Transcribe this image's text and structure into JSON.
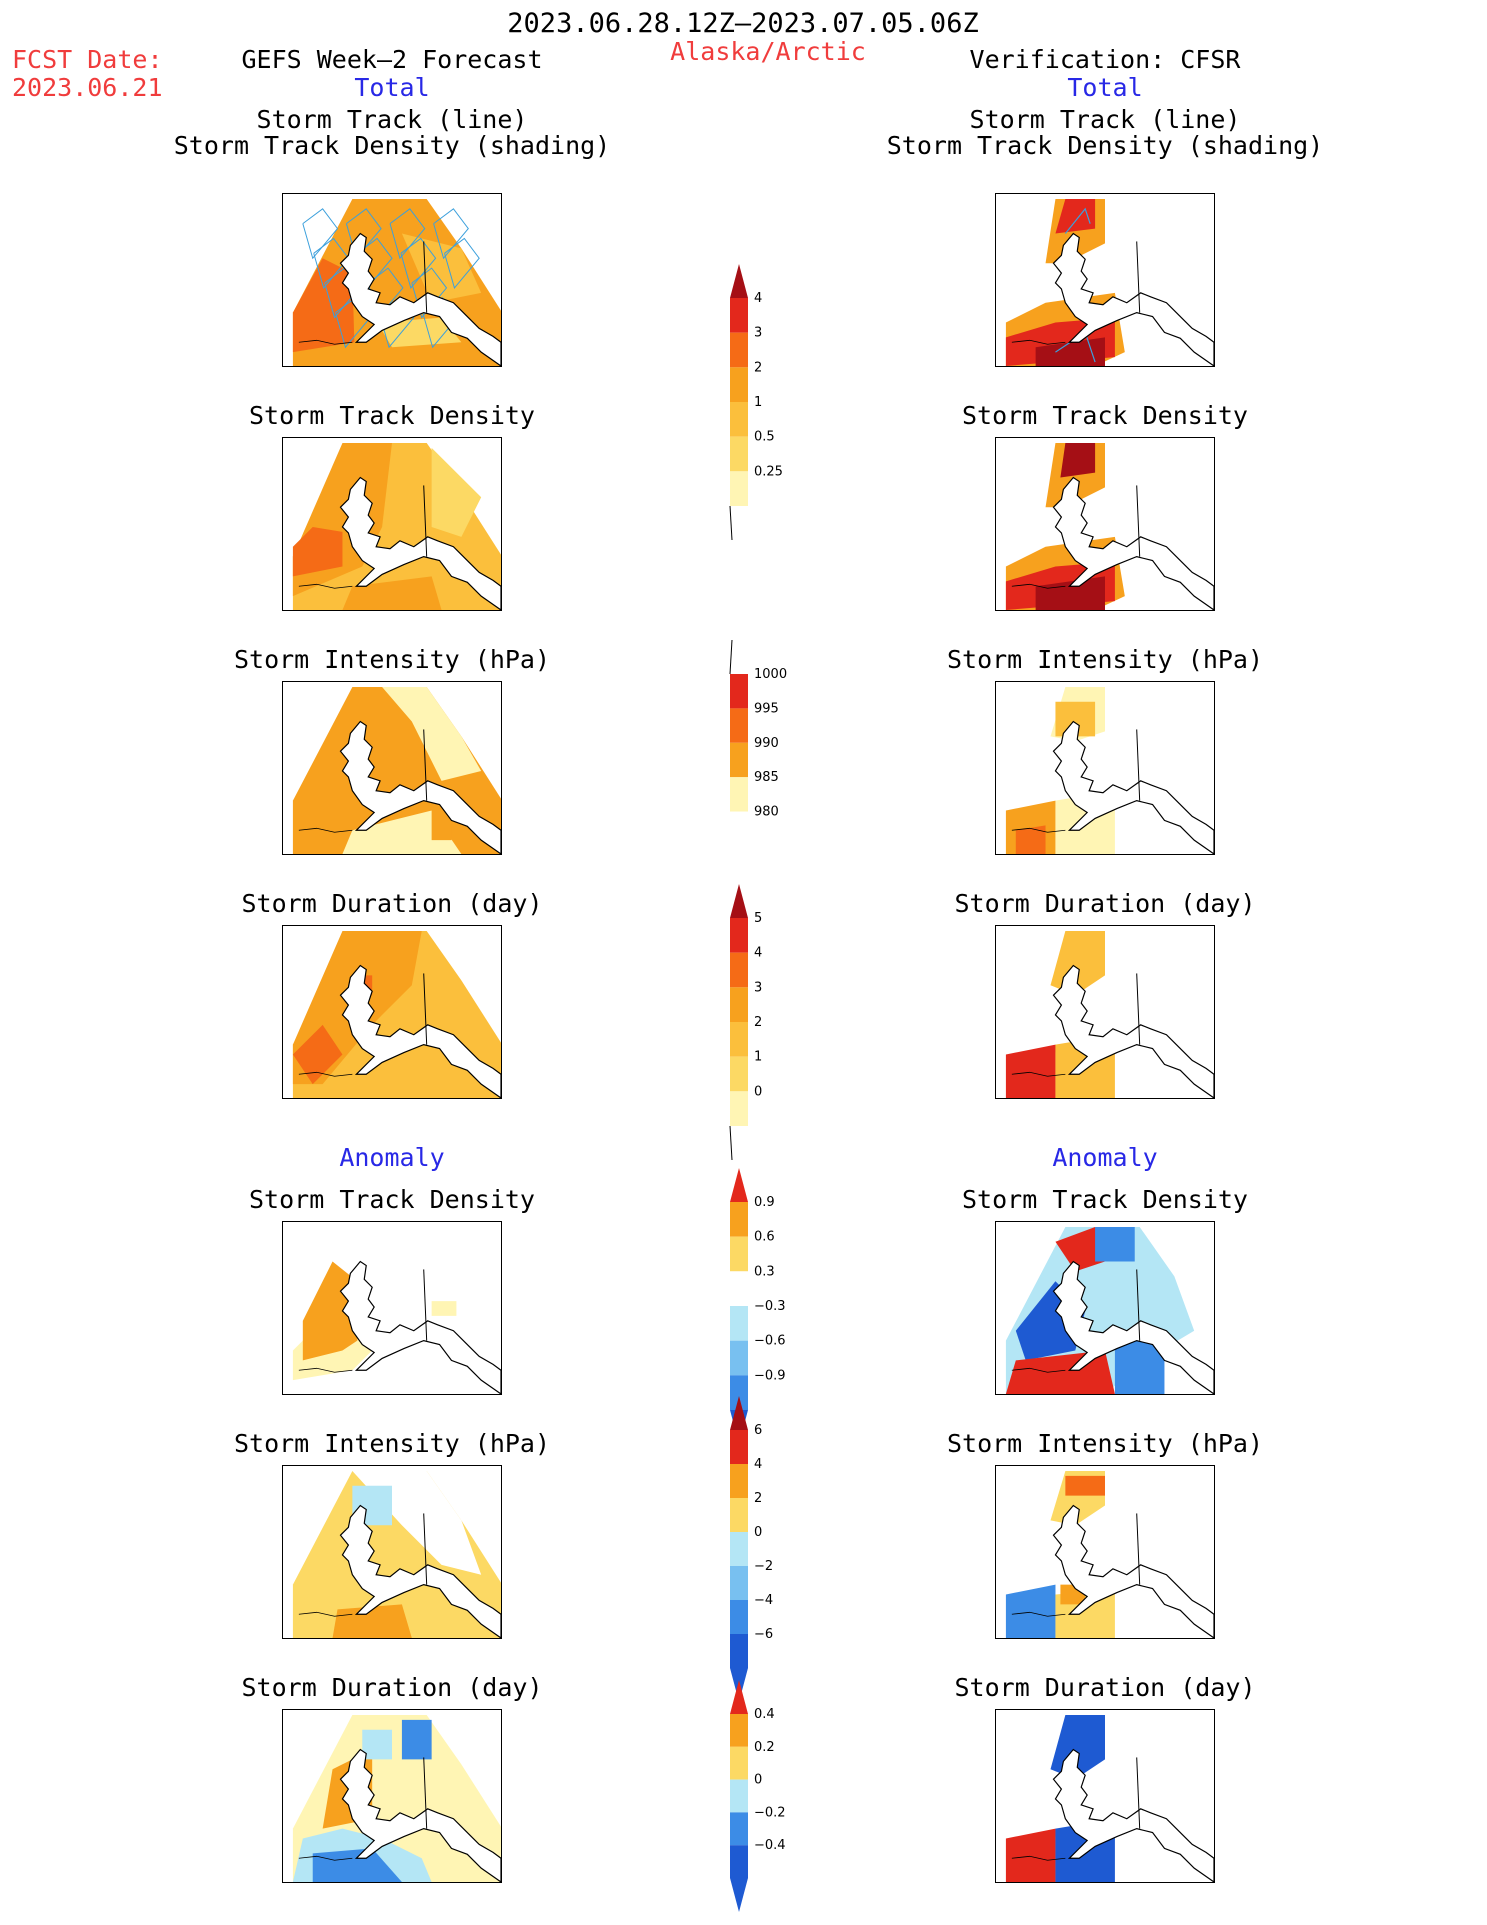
{
  "header": {
    "period": "2023.06.28.12Z–2023.07.05.06Z",
    "fcst_label": "FCST Date:",
    "fcst_date": "2023.06.21",
    "model": "GEFS Week–2 Forecast",
    "region": "Alaska/Arctic",
    "verification": "Verification: CFSR"
  },
  "sections": {
    "total_left": "Total",
    "total_right": "Total",
    "anomaly_left": "Anomaly",
    "anomaly_right": "Anomaly"
  },
  "titles": {
    "track_line": "Storm Track (line)",
    "track_shading": "Storm Track Density (shading)",
    "density": "Storm Track Density",
    "intensity": "Storm Intensity (hPa)",
    "duration": "Storm Duration (day)"
  },
  "colors": {
    "yellow_light": "#fff5b4",
    "yellow": "#fcd964",
    "orange_light": "#fbbf3c",
    "orange": "#f7a11e",
    "orange_dark": "#f56b16",
    "red": "#e3281c",
    "dark_red": "#a50f15",
    "track_line": "#3ca0dc",
    "blue_light": "#b4e6f5",
    "blue_mid": "#78c0f0",
    "blue": "#3c8ce6",
    "blue_dark": "#1e5ad2"
  },
  "chart_data": [
    {
      "type": "heatmap",
      "name": "total-density-colorbar",
      "levels": [
        0.25,
        0.5,
        1,
        2,
        3,
        4
      ],
      "labels": [
        "4",
        "3",
        "2",
        "1",
        "0.5",
        "0.25"
      ],
      "colors": [
        "#fff5b4",
        "#fcd964",
        "#fbbf3c",
        "#f7a11e",
        "#f56b16",
        "#e3281c",
        "#a50f15"
      ]
    },
    {
      "type": "heatmap",
      "name": "total-intensity-colorbar",
      "levels": [
        980,
        985,
        990,
        995,
        1000
      ],
      "labels": [
        "1000",
        "995",
        "990",
        "985",
        "980"
      ],
      "colors": [
        "#ffffff",
        "#fff5b4",
        "#f7a11e",
        "#f56b16",
        "#e3281c",
        "#a50f15"
      ]
    },
    {
      "type": "heatmap",
      "name": "total-duration-colorbar",
      "levels": [
        0,
        1,
        2,
        3,
        4,
        5
      ],
      "labels": [
        "5",
        "4",
        "3",
        "2",
        "1",
        "0"
      ],
      "colors": [
        "#fff5b4",
        "#fcd964",
        "#fbbf3c",
        "#f7a11e",
        "#f56b16",
        "#e3281c",
        "#a50f15"
      ]
    },
    {
      "type": "heatmap",
      "name": "anomaly-density-colorbar",
      "levels": [
        -0.9,
        -0.6,
        -0.3,
        0.3,
        0.6,
        0.9
      ],
      "labels": [
        "0.9",
        "0.6",
        "0.3",
        "−0.3",
        "−0.6",
        "−0.9"
      ],
      "colors": [
        "#1e5ad2",
        "#3c8ce6",
        "#78c0f0",
        "#b4e6f5",
        "#ffffff",
        "#fcd964",
        "#f7a11e",
        "#e3281c"
      ]
    },
    {
      "type": "heatmap",
      "name": "anomaly-intensity-colorbar",
      "levels": [
        -6,
        -4,
        -2,
        0,
        2,
        4,
        6
      ],
      "labels": [
        "6",
        "4",
        "2",
        "0",
        "−2",
        "−4",
        "−6"
      ],
      "colors": [
        "#1e5ad2",
        "#3c8ce6",
        "#78c0f0",
        "#b4e6f5",
        "#fcd964",
        "#f7a11e",
        "#e3281c",
        "#a50f15"
      ]
    },
    {
      "type": "heatmap",
      "name": "anomaly-duration-colorbar",
      "levels": [
        -0.4,
        -0.2,
        0,
        0.2,
        0.4
      ],
      "labels": [
        "0.4",
        "0.2",
        "0",
        "−0.2",
        "−0.4"
      ],
      "colors": [
        "#1e5ad2",
        "#3c8ce6",
        "#b4e6f5",
        "#fcd964",
        "#f7a11e",
        "#e3281c"
      ]
    }
  ]
}
